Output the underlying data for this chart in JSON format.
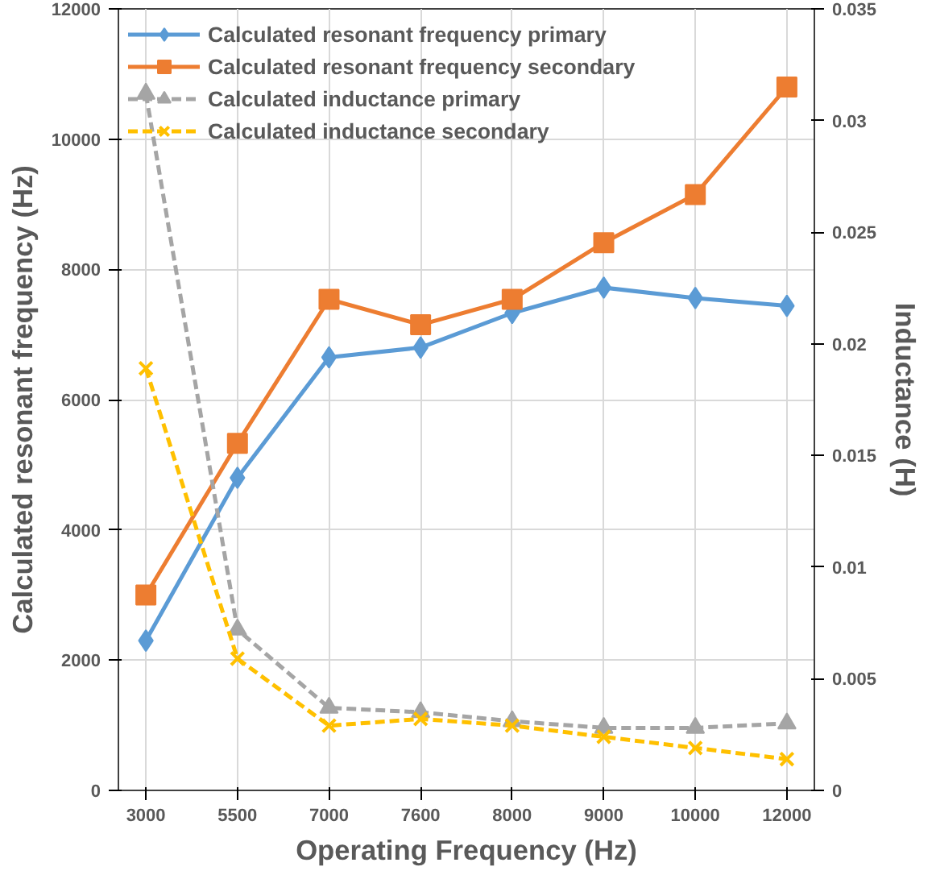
{
  "chart_data": {
    "type": "line",
    "xlabel": "Operating Frequency (Hz)",
    "ylabel": "Calculated resonant frequency (Hz)",
    "y2label": "Inductance (H)",
    "categories": [
      "3000",
      "5500",
      "7000",
      "7600",
      "8000",
      "9000",
      "10000",
      "12000"
    ],
    "series": [
      {
        "name": "Calculated resonant frequency primary",
        "color": "#5b9bd5",
        "marker": "diamond",
        "line_style": "solid",
        "values": [
          2300,
          4800,
          6650,
          6800,
          7330,
          7720,
          7560,
          7440
        ]
      },
      {
        "name": "Calculated resonant frequency secondary",
        "color": "#ed7d31",
        "marker": "square",
        "line_style": "solid",
        "values": [
          3000,
          5330,
          7540,
          7150,
          7540,
          8410,
          9150,
          10800
        ]
      },
      {
        "name": "Calculated inductance primary",
        "color": "#a5a5a5",
        "marker": "triangle",
        "line_style": "dashed",
        "axis": "y2",
        "values": [
          0.0312,
          0.0072,
          0.0037,
          0.0035,
          0.0031,
          0.0028,
          0.0028,
          0.003
        ]
      },
      {
        "name": "Calculated inductance secondary",
        "color": "#ffc000",
        "marker": "cross",
        "line_style": "dashed",
        "axis": "y2",
        "values": [
          0.0189,
          0.0059,
          0.0029,
          0.0032,
          0.0029,
          0.0024,
          0.0019,
          0.0014
        ]
      }
    ],
    "ylim": [
      0,
      12000
    ],
    "yticks": [
      0,
      2000,
      4000,
      6000,
      8000,
      10000,
      12000
    ],
    "y2lim": [
      0,
      0.035
    ],
    "y2ticks": [
      0,
      0.005,
      0.01,
      0.015,
      0.02,
      0.025,
      0.03,
      0.035
    ],
    "grid": true,
    "legend": "top left"
  }
}
